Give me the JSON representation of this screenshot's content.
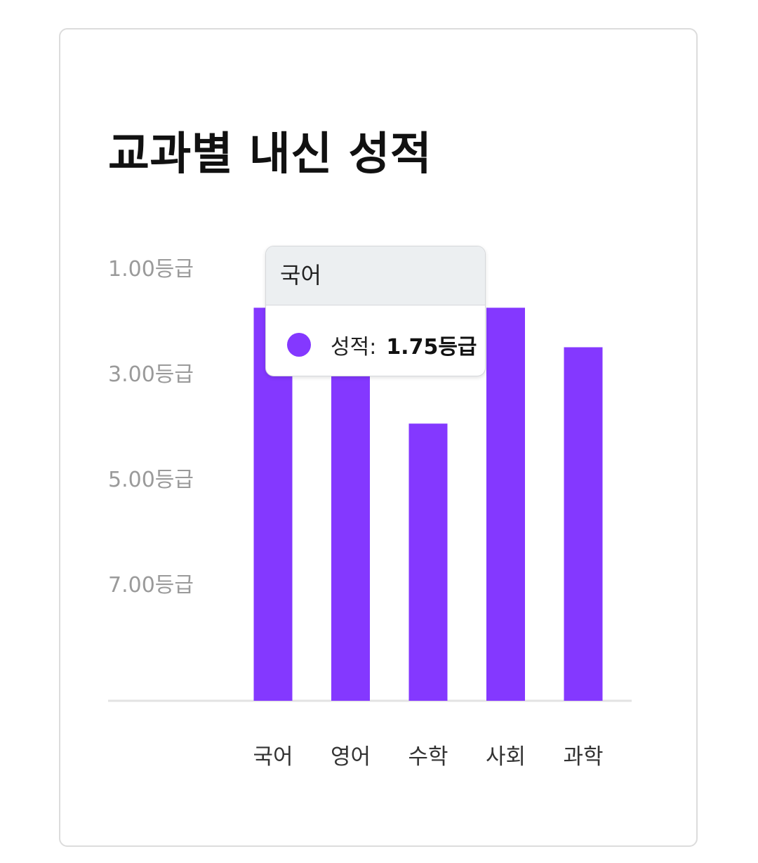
{
  "chart_data": {
    "type": "bar",
    "title": "교과별 내신 성적",
    "categories": [
      "국어",
      "영어",
      "수학",
      "사회",
      "과학"
    ],
    "series": [
      {
        "name": "성적",
        "values": [
          1.75,
          3.0,
          3.95,
          1.75,
          2.5
        ]
      }
    ],
    "y_tick_labels": [
      "1.00등급",
      "3.00등급",
      "5.00등급",
      "7.00등급"
    ],
    "y_ticks": [
      1,
      3,
      5,
      7
    ],
    "y_axis_reversed": true,
    "ylim": [
      9,
      1
    ],
    "grid": false,
    "bar_color": "#8438ff"
  },
  "tooltip": {
    "category": "국어",
    "series_label": "성적:",
    "value_text": "1.75등급",
    "dot_color": "#8438ff"
  }
}
